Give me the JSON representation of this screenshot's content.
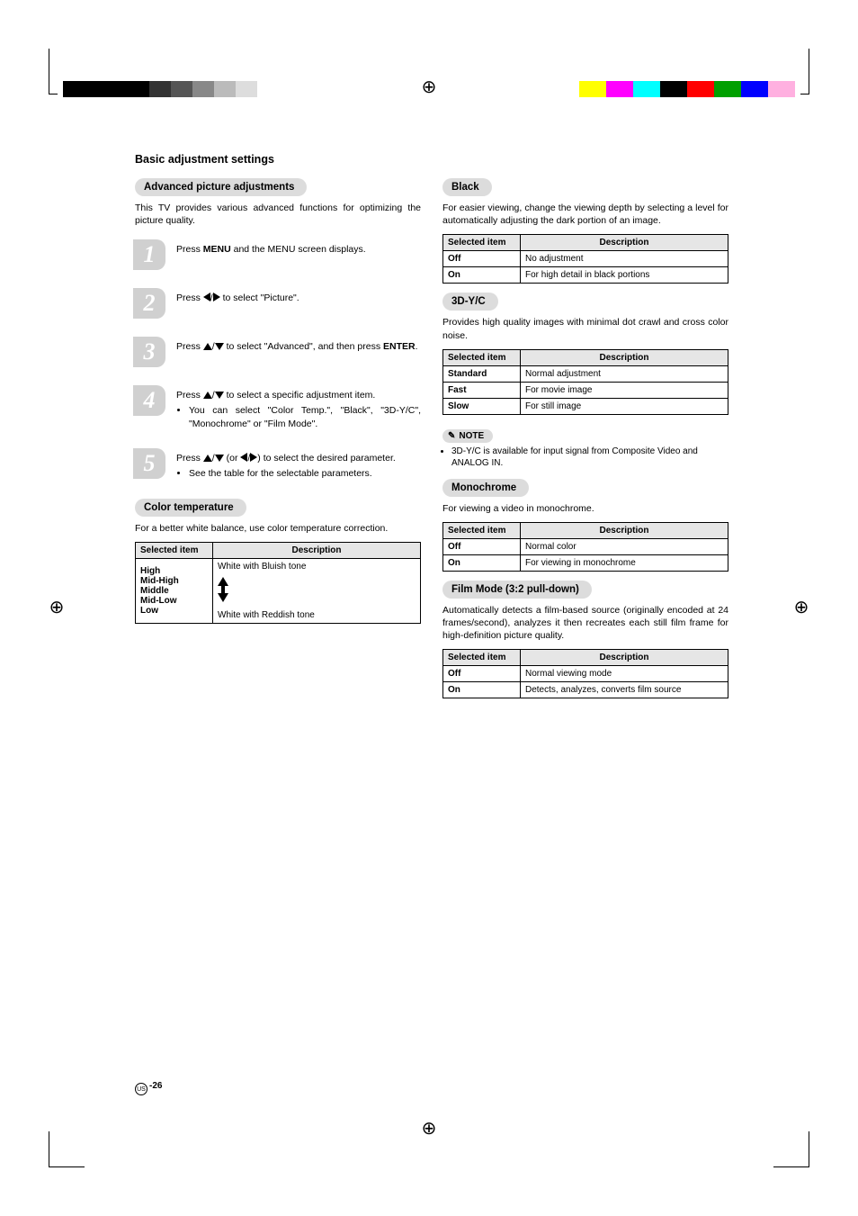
{
  "page": {
    "title": "Basic adjustment settings",
    "footer_region": "US",
    "footer_page": "-26"
  },
  "reg_colors_left": [
    "#000000",
    "#000000",
    "#000000",
    "#000000",
    "#333333",
    "#555555",
    "#888888",
    "#bbbbbb",
    "#dddddd",
    "#ffffff"
  ],
  "reg_colors_right": [
    "#ffff00",
    "#ff00ff",
    "#00ffff",
    "#000000",
    "#ff0000",
    "#00a000",
    "#0000ff",
    "#ffb0e0"
  ],
  "left_col": {
    "adv_heading": "Advanced picture adjustments",
    "adv_intro": "This TV provides various advanced functions for optimizing the picture quality.",
    "steps": [
      {
        "num": "1",
        "html": "Press <b>MENU</b> and the MENU screen displays."
      },
      {
        "num": "2",
        "html": "Press <span class='tri tri-l'></span>/<span class='tri tri-r'></span> to select \"Picture\"."
      },
      {
        "num": "3",
        "html": "Press <span class='tri tri-u'></span>/<span class='tri tri-d'></span> to select \"Advanced\", and then press <b>ENTER</b>."
      },
      {
        "num": "4",
        "html": "Press <span class='tri tri-u'></span>/<span class='tri tri-d'></span> to select a specific adjustment item.<ul><li>You can select \"Color Temp.\", \"Black\", \"3D-Y/C\", \"Monochrome\" or \"Film Mode\".</li></ul>"
      },
      {
        "num": "5",
        "html": "Press <span class='tri tri-u'></span>/<span class='tri tri-d'></span> (or <span class='tri tri-l'></span>/<span class='tri tri-r'></span>) to select the desired parameter.<ul><li>See the table for the selectable parameters.</li></ul>"
      }
    ],
    "colortemp_heading": "Color temperature",
    "colortemp_intro": "For a better white balance, use color temperature correction.",
    "colortemp_table": {
      "header_sel": "Selected item",
      "header_desc": "Description",
      "top_label": "White with Bluish tone",
      "bottom_label": "White with Reddish tone",
      "items": [
        "High",
        "Mid-High",
        "Middle",
        "Mid-Low",
        "Low"
      ]
    }
  },
  "right_col": {
    "sections": [
      {
        "heading": "Black",
        "intro": "For easier viewing, change the viewing depth by selecting a level for automatically adjusting the dark portion of an image.",
        "rows": [
          {
            "k": "Off",
            "v": "No adjustment"
          },
          {
            "k": "On",
            "v": "For high detail in black portions"
          }
        ]
      },
      {
        "heading": "3D-Y/C",
        "intro": "Provides high quality images with minimal dot crawl and cross color noise.",
        "rows": [
          {
            "k": "Standard",
            "v": "Normal adjustment"
          },
          {
            "k": "Fast",
            "v": "For movie image"
          },
          {
            "k": "Slow",
            "v": "For still image"
          }
        ],
        "note_label": "NOTE",
        "note_items": [
          "3D-Y/C is available for input signal from Composite Video and ANALOG IN."
        ]
      },
      {
        "heading": "Monochrome",
        "intro": "For viewing a video in monochrome.",
        "rows": [
          {
            "k": "Off",
            "v": "Normal color"
          },
          {
            "k": "On",
            "v": "For viewing in monochrome"
          }
        ]
      },
      {
        "heading": "Film Mode (3:2 pull-down)",
        "intro": "Automatically detects a film-based source (originally encoded at 24 frames/second), analyzes it then recreates each still film frame for high-definition picture quality.",
        "rows": [
          {
            "k": "Off",
            "v": "Normal viewing mode"
          },
          {
            "k": "On",
            "v": "Detects, analyzes, converts film source"
          }
        ]
      }
    ],
    "header_sel": "Selected item",
    "header_desc": "Description"
  }
}
